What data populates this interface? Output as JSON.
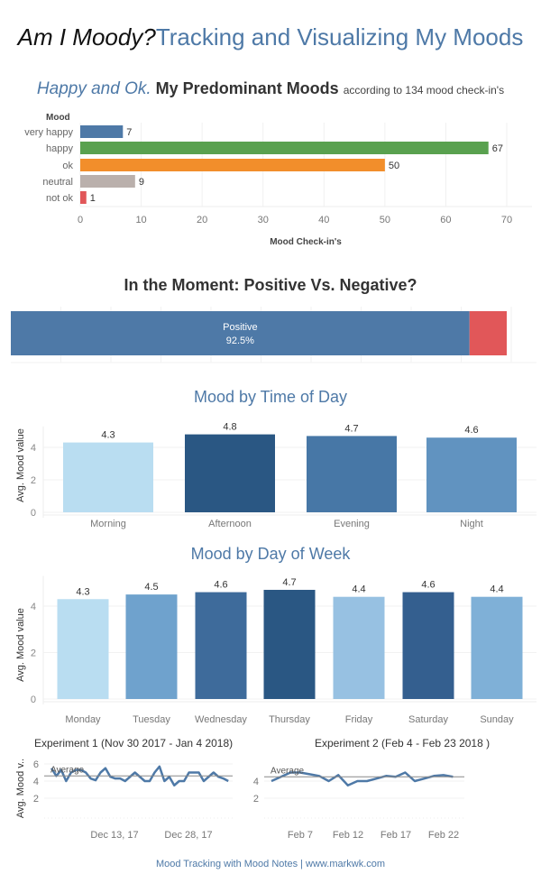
{
  "header": {
    "title_part1": "Am I Moody?",
    "title_part2": "Tracking and Visualizing My Moods"
  },
  "subtitle": {
    "highlight": "Happy and Ok.",
    "main": "My Predominant Moods",
    "note": "according to 134 mood check-in's"
  },
  "colors": {
    "accent": "#4e79a7",
    "happy": "#59a14f",
    "ok": "#f28e2b",
    "neutral": "#bab0ac",
    "not_ok": "#e15759",
    "very_happy": "#4e79a7",
    "negative": "#e15759"
  },
  "chart_data": [
    {
      "type": "bar",
      "orientation": "horizontal",
      "ylabel": "Mood",
      "xlabel": "Mood Check-in's",
      "categories": [
        "very happy",
        "happy",
        "ok",
        "neutral",
        "not ok"
      ],
      "values": [
        7,
        67,
        50,
        9,
        1
      ],
      "colors": [
        "#4e79a7",
        "#59a14f",
        "#f28e2b",
        "#bab0ac",
        "#e15759"
      ],
      "xlim": [
        0,
        70
      ],
      "xticks": [
        0,
        10,
        20,
        30,
        40,
        50,
        60,
        70
      ],
      "grid": true
    },
    {
      "type": "bar",
      "orientation": "horizontal",
      "stacked": true,
      "title": "In the Moment: Positive Vs. Negative?",
      "segments": [
        {
          "name": "Positive",
          "value": 92.5,
          "label": "92.5%",
          "color": "#4e79a7"
        },
        {
          "value": 7.5,
          "color": "#e15759"
        }
      ]
    },
    {
      "type": "bar",
      "title": "Mood by Time of Day",
      "ylabel": "Avg. Mood value",
      "categories": [
        "Morning",
        "Afternoon",
        "Evening",
        "Night"
      ],
      "values": [
        4.3,
        4.8,
        4.7,
        4.6
      ],
      "colors": [
        "#b9ddf1",
        "#2a5783",
        "#4777a6",
        "#6193c0"
      ],
      "yticks": [
        0,
        2,
        4
      ],
      "ylim": [
        0,
        5.5
      ]
    },
    {
      "type": "bar",
      "title": "Mood by Day of Week",
      "ylabel": "Avg. Mood value",
      "categories": [
        "Monday",
        "Tuesday",
        "Wednesday",
        "Thursday",
        "Friday",
        "Saturday",
        "Sunday"
      ],
      "values": [
        4.3,
        4.5,
        4.6,
        4.7,
        4.4,
        4.6,
        4.4
      ],
      "colors": [
        "#b9ddf1",
        "#6fa2cd",
        "#3e6b9b",
        "#2a5783",
        "#97c1e2",
        "#345f8f",
        "#7fb0d7"
      ],
      "yticks": [
        0,
        2,
        4
      ],
      "ylim": [
        0,
        5.2
      ]
    },
    {
      "type": "line",
      "title": "Experiment 1",
      "title_note": "(Nov 30 2017 - Jan 4 2018)",
      "ylabel": "Avg. Mood v..",
      "x_start": "2017-11-30",
      "values": [
        5.5,
        4.6,
        5.3,
        4,
        5,
        5.3,
        5.3,
        5,
        4.3,
        4.1,
        5,
        5.5,
        4.5,
        4.3,
        4.3,
        4,
        4.5,
        5,
        4.5,
        4,
        4,
        5,
        5.7,
        4,
        4.5,
        3.5,
        4,
        4,
        5,
        5,
        5,
        4,
        4.5,
        5,
        4.5,
        4.3,
        4
      ],
      "average": 4.6,
      "average_label": "Average",
      "xticks": [
        "Dec 13, 17",
        "Dec 28, 17"
      ],
      "yticks": [
        2,
        4,
        6
      ]
    },
    {
      "type": "line",
      "title": "Experiment 2",
      "title_note": "(Feb 4 - Feb 23 2018 )",
      "x_start": "2018-02-04",
      "values": [
        4,
        4.5,
        5,
        5,
        4.8,
        4.6,
        4,
        4.7,
        3.5,
        4,
        4,
        4.3,
        4.6,
        4.5,
        5,
        4,
        4.3,
        4.6,
        4.7,
        4.5
      ],
      "average": 4.5,
      "average_label": "Average",
      "xticks": [
        "Feb 7",
        "Feb 12",
        "Feb 17",
        "Feb 22"
      ],
      "yticks": [
        2,
        4
      ]
    }
  ],
  "footer": "Mood Tracking with Mood Notes | www.markwk.com"
}
